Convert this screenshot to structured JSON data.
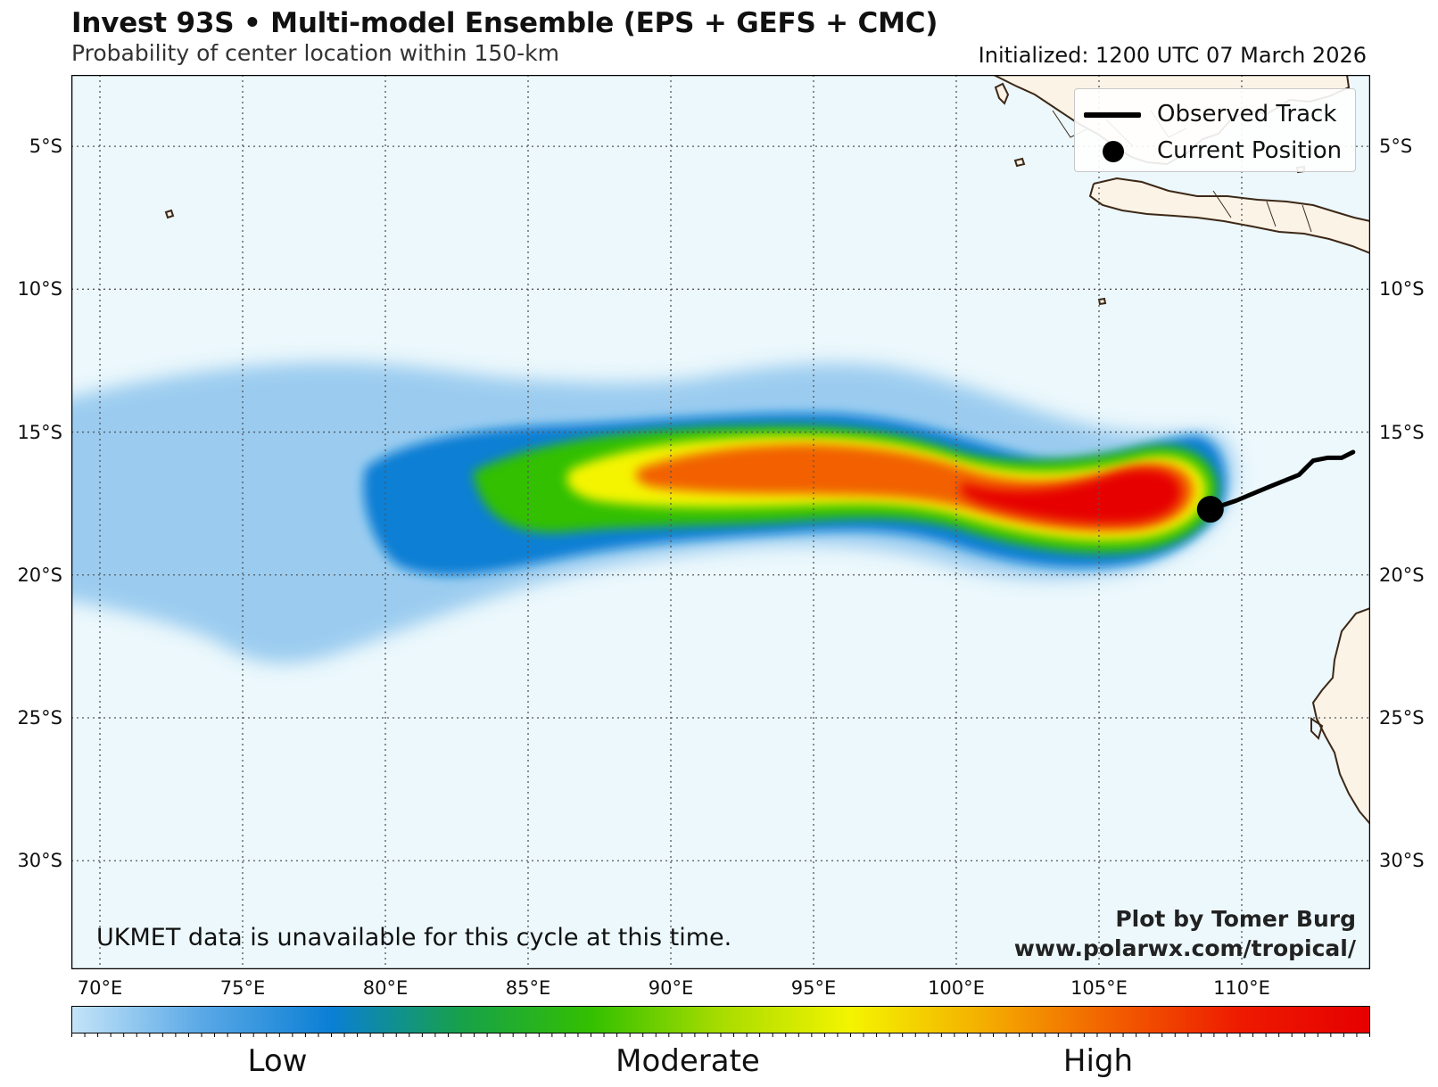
{
  "header": {
    "title": "Invest 93S • Multi-model Ensemble (EPS + GEFS + CMC)",
    "subtitle": "Probability of center location within 150-km",
    "initialized": "Initialized: 1200 UTC 07 March 2026"
  },
  "axes": {
    "lat_labels": [
      "5°S",
      "10°S",
      "15°S",
      "20°S",
      "25°S",
      "30°S"
    ],
    "lon_labels": [
      "70°E",
      "75°E",
      "80°E",
      "85°E",
      "90°E",
      "95°E",
      "100°E",
      "105°E",
      "110°E"
    ],
    "lat_values": [
      -5,
      -10,
      -15,
      -20,
      -25,
      -30
    ],
    "lon_values": [
      70,
      75,
      80,
      85,
      90,
      95,
      100,
      105,
      110
    ],
    "lon_range": [
      69,
      114.5
    ],
    "lat_range": [
      -2.5,
      -33.8
    ]
  },
  "legend": {
    "observed_track": "Observed Track",
    "current_position": "Current Position"
  },
  "notes": {
    "ukmet": "UKMET data is unavailable for this cycle at this time."
  },
  "credit": {
    "line1": "Plot by Tomer Burg",
    "line2": "www.polarwx.com/tropical/"
  },
  "colorbar": {
    "low": "Low",
    "moderate": "Moderate",
    "high": "High",
    "stops": [
      "#c4e4f8",
      "#5aa8e6",
      "#0a7fd4",
      "#17a14a",
      "#33c000",
      "#a8dc00",
      "#f4f400",
      "#f4b000",
      "#f26000",
      "#ee1a00",
      "#e60000"
    ]
  },
  "colors": {
    "ocean": "#ecf8fc",
    "land": "#fbf3e6",
    "coast": "#3d2817",
    "track": "#000000"
  },
  "track": {
    "observed": [
      [
        108.9,
        -17.7
      ],
      [
        109.8,
        -17.4
      ],
      [
        111.0,
        -16.9
      ],
      [
        112.0,
        -16.5
      ],
      [
        112.5,
        -16.0
      ],
      [
        113.0,
        -15.9
      ],
      [
        113.5,
        -15.9
      ],
      [
        113.9,
        -15.7
      ]
    ],
    "current_position": [
      108.9,
      -17.7
    ]
  }
}
